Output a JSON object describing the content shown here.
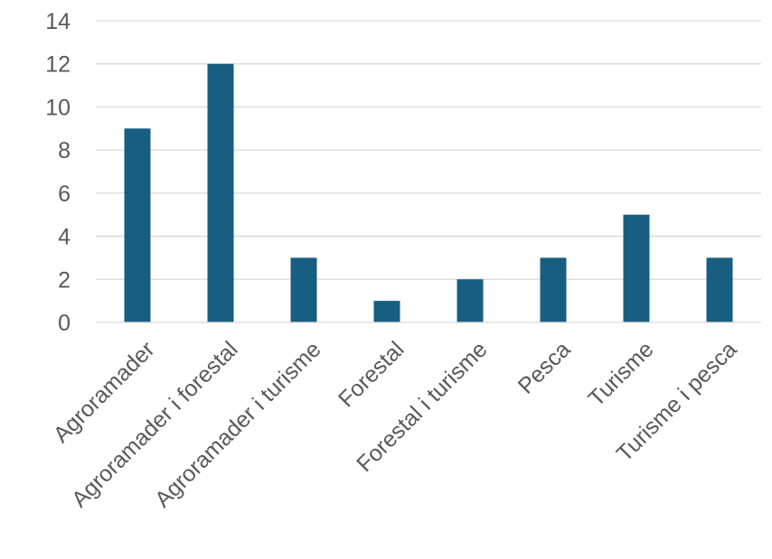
{
  "chart_data": {
    "type": "bar",
    "categories": [
      "Agroramader",
      "Agroramader i forestal",
      "Agroramader i turisme",
      "Forestal",
      "Forestal i turisme",
      "Pesca",
      "Turisme",
      "Turisme i pesca"
    ],
    "values": [
      9,
      12,
      3,
      1,
      2,
      3,
      5,
      3
    ],
    "ylim": [
      0,
      14
    ],
    "yticks": [
      "0",
      "2",
      "4",
      "6",
      "8",
      "10",
      "12",
      "14"
    ],
    "grid": true,
    "bar_color": "#185e80",
    "grid_color": "#d9d9d9",
    "text_color": "#595959"
  }
}
